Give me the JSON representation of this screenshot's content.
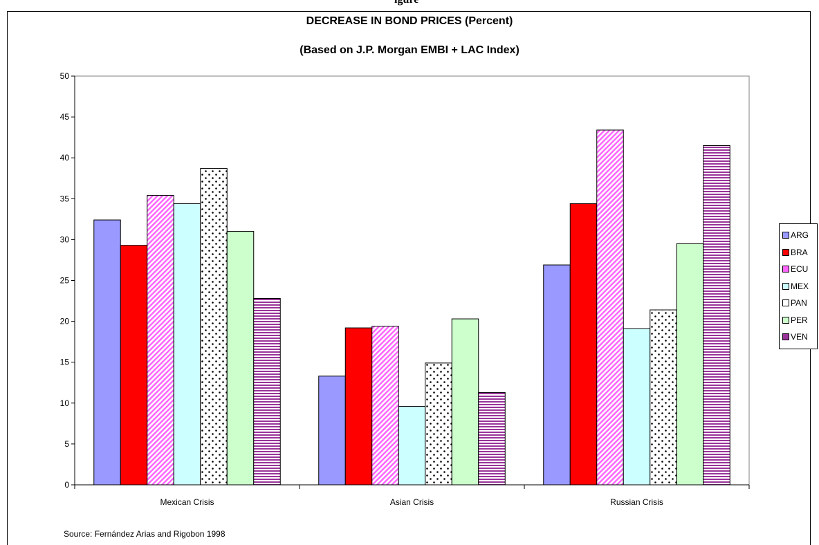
{
  "header": {
    "partial_text": "igure",
    "title": "DECREASE IN BOND PRICES (Percent)",
    "subtitle": "(Based on J.P. Morgan EMBI + LAC Index)"
  },
  "source": "Source:  Fernández Arias and Rigobon 1998",
  "chart_data": {
    "type": "bar",
    "title": "DECREASE IN BOND PRICES (Percent)",
    "subtitle": "(Based on J.P. Morgan EMBI + LAC Index)",
    "categories": [
      "Mexican Crisis",
      "Asian Crisis",
      "Russian Crisis"
    ],
    "ylim": [
      0,
      50
    ],
    "yticks": [
      "0",
      "5",
      "10",
      "15",
      "20",
      "25",
      "30",
      "35",
      "40",
      "45",
      "50"
    ],
    "grid": false,
    "legend_position": "right",
    "series": [
      {
        "name": "ARG",
        "values": [
          32.4,
          13.3,
          26.9
        ],
        "color": "#9999ff",
        "pattern": "solid"
      },
      {
        "name": "BRA",
        "values": [
          29.3,
          19.2,
          34.4
        ],
        "color": "#ff0000",
        "pattern": "solid"
      },
      {
        "name": "ECU",
        "values": [
          35.4,
          19.4,
          43.4
        ],
        "color": "#ff66ff",
        "pattern": "diagonal-stripes"
      },
      {
        "name": "MEX",
        "values": [
          34.4,
          9.6,
          19.1
        ],
        "color": "#ccffff",
        "pattern": "solid"
      },
      {
        "name": "PAN",
        "values": [
          38.7,
          14.9,
          21.4
        ],
        "color": "#ffffff",
        "pattern": "dots"
      },
      {
        "name": "PER",
        "values": [
          31.0,
          20.3,
          29.5
        ],
        "color": "#ccffcc",
        "pattern": "solid"
      },
      {
        "name": "VEN",
        "values": [
          22.8,
          11.3,
          41.5
        ],
        "color": "#993399",
        "pattern": "horizontal-stripes"
      }
    ]
  }
}
